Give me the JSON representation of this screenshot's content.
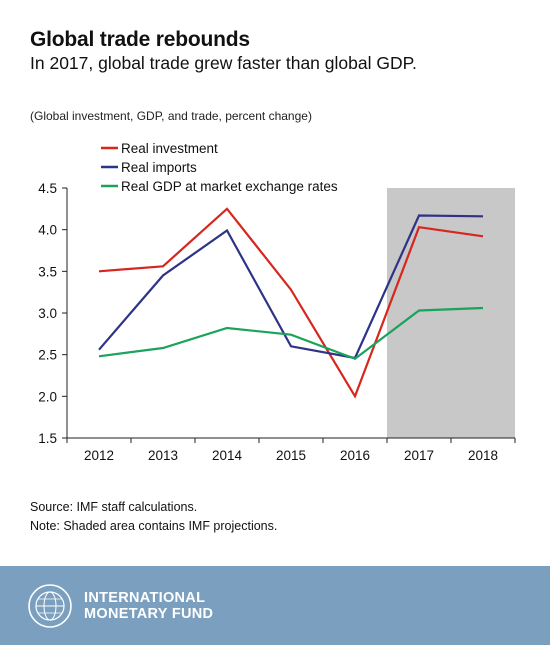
{
  "title": "Global trade rebounds",
  "subtitle": "In 2017, global trade grew faster than global GDP.",
  "unit_note": "(Global investment, GDP, and trade, percent change)",
  "source": "Source: IMF staff calculations.",
  "note": "Note: Shaded area contains IMF projections.",
  "footer": {
    "line1": "INTERNATIONAL",
    "line2": "MONETARY FUND",
    "seal_icon": "imf-seal-icon",
    "background_color": "#7a9fbf"
  },
  "colors": {
    "real_investment": "#d7261e",
    "real_imports": "#2e3385",
    "real_gdp": "#1aa35a",
    "projection_shade": "#c8c8c8"
  },
  "chart_data": {
    "type": "line",
    "x": [
      "2012",
      "2013",
      "2014",
      "2015",
      "2016",
      "2017",
      "2018"
    ],
    "ylim": [
      1.5,
      4.5
    ],
    "yticks": [
      "1.5",
      "2.0",
      "2.5",
      "3.0",
      "3.5",
      "4.0",
      "4.5"
    ],
    "shaded_categories": [
      "2017",
      "2018"
    ],
    "legend_position": "top-left",
    "series": [
      {
        "name": "Real investment",
        "color": "#d7261e",
        "values": [
          3.5,
          3.56,
          4.25,
          3.28,
          2.0,
          4.03,
          3.92
        ]
      },
      {
        "name": "Real imports",
        "color": "#2e3385",
        "values": [
          2.56,
          3.45,
          3.99,
          2.6,
          2.46,
          4.17,
          4.16
        ]
      },
      {
        "name": "Real GDP at market exchange rates",
        "color": "#1aa35a",
        "values": [
          2.48,
          2.58,
          2.82,
          2.74,
          2.45,
          3.03,
          3.06
        ]
      }
    ]
  }
}
